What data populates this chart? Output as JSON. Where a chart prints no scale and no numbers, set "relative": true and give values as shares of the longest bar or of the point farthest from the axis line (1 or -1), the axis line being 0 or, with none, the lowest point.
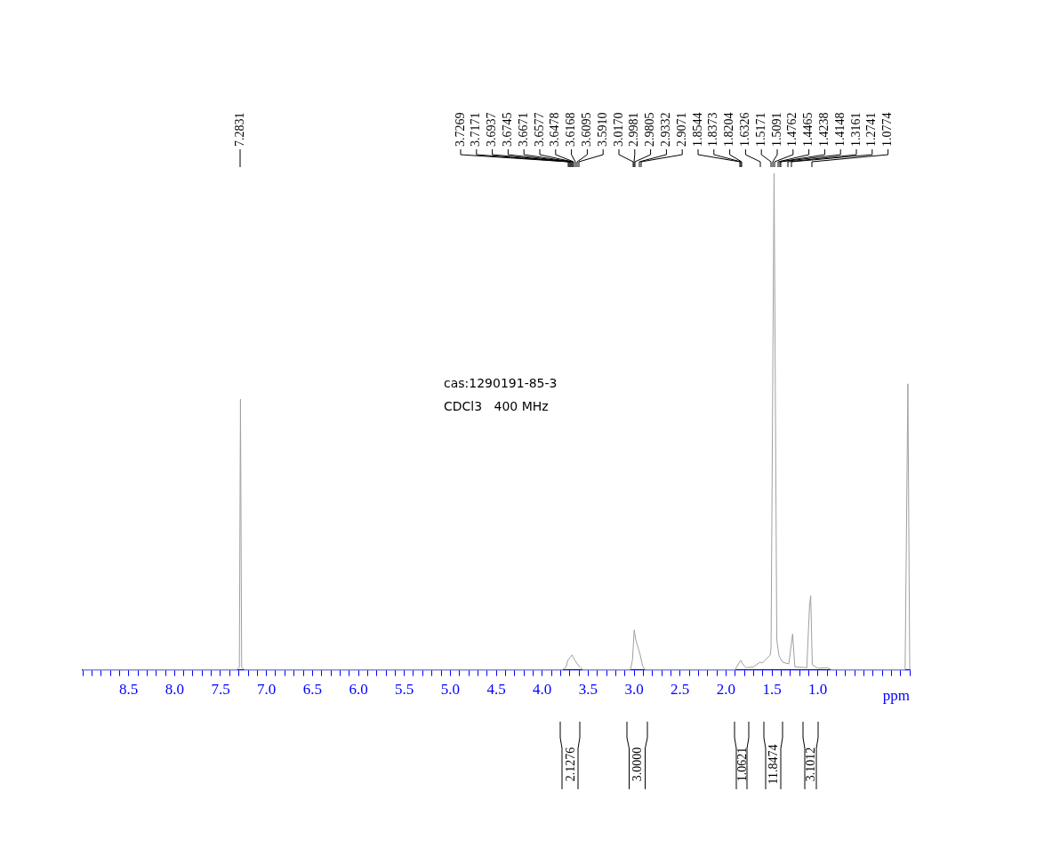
{
  "chart_data": {
    "type": "line",
    "relative": true,
    "xlabel": "ppm",
    "marker": "none",
    "xlim": [
      9.0,
      0.0
    ],
    "xticks": [
      {
        "value": 0,
        "label": null
      },
      {
        "value": 0.1,
        "label": null
      },
      {
        "value": 0.2,
        "label": null
      },
      {
        "value": 0.3,
        "label": null
      },
      {
        "value": 0.4,
        "label": null
      },
      {
        "value": 0.5,
        "label": null
      },
      {
        "value": 0.6,
        "label": null
      },
      {
        "value": 0.7,
        "label": null
      },
      {
        "value": 0.8,
        "label": null
      },
      {
        "value": 0.9,
        "label": null
      },
      {
        "value": 1,
        "label": "1.0"
      },
      {
        "value": 1.1,
        "label": null
      },
      {
        "value": 1.2,
        "label": null
      },
      {
        "value": 1.3,
        "label": null
      },
      {
        "value": 1.4,
        "label": null
      },
      1.5,
      {
        "value": 1.6,
        "label": null
      },
      {
        "value": 1.7,
        "label": null
      },
      {
        "value": 1.8,
        "label": null
      },
      {
        "value": 1.9,
        "label": null
      },
      {
        "value": 2,
        "label": "2.0"
      },
      {
        "value": 2.1,
        "label": null
      },
      {
        "value": 2.2,
        "label": null
      },
      {
        "value": 2.3,
        "label": null
      },
      {
        "value": 2.4,
        "label": null
      },
      2.5,
      {
        "value": 2.6,
        "label": null
      },
      {
        "value": 2.7,
        "label": null
      },
      {
        "value": 2.8,
        "label": null
      },
      {
        "value": 2.9,
        "label": null
      },
      {
        "value": 3,
        "label": "3.0"
      },
      {
        "value": 3.1,
        "label": null
      },
      {
        "value": 3.2,
        "label": null
      },
      {
        "value": 3.3,
        "label": null
      },
      {
        "value": 3.4,
        "label": null
      },
      3.5,
      {
        "value": 3.6,
        "label": null
      },
      {
        "value": 3.7,
        "label": null
      },
      {
        "value": 3.8,
        "label": null
      },
      {
        "value": 3.9,
        "label": null
      },
      {
        "value": 4,
        "label": "4.0"
      },
      {
        "value": 4.1,
        "label": null
      },
      {
        "value": 4.2,
        "label": null
      },
      {
        "value": 4.3,
        "label": null
      },
      {
        "value": 4.4,
        "label": null
      },
      4.5,
      {
        "value": 4.6,
        "label": null
      },
      {
        "value": 4.7,
        "label": null
      },
      {
        "value": 4.8,
        "label": null
      },
      {
        "value": 4.9,
        "label": null
      },
      {
        "value": 5,
        "label": "5.0"
      },
      {
        "value": 5.1,
        "label": null
      },
      {
        "value": 5.2,
        "label": null
      },
      {
        "value": 5.3,
        "label": null
      },
      {
        "value": 5.4,
        "label": null
      },
      5.5,
      {
        "value": 5.6,
        "label": null
      },
      {
        "value": 5.7,
        "label": null
      },
      {
        "value": 5.8,
        "label": null
      },
      {
        "value": 5.9,
        "label": null
      },
      {
        "value": 6,
        "label": "6.0"
      },
      {
        "value": 6.1,
        "label": null
      },
      {
        "value": 6.2,
        "label": null
      },
      {
        "value": 6.3,
        "label": null
      },
      {
        "value": 6.4,
        "label": null
      },
      6.5,
      {
        "value": 6.6,
        "label": null
      },
      {
        "value": 6.7,
        "label": null
      },
      {
        "value": 6.8,
        "label": null
      },
      {
        "value": 6.9,
        "label": null
      },
      {
        "value": 7,
        "label": "7.0"
      },
      {
        "value": 7.1,
        "label": null
      },
      {
        "value": 7.2,
        "label": null
      },
      {
        "value": 7.3,
        "label": null
      },
      {
        "value": 7.4,
        "label": null
      },
      7.5,
      {
        "value": 7.6,
        "label": null
      },
      {
        "value": 7.7,
        "label": null
      },
      {
        "value": 7.8,
        "label": null
      },
      {
        "value": 7.9,
        "label": null
      },
      {
        "value": 8,
        "label": "8.0"
      },
      {
        "value": 8.1,
        "label": null
      },
      {
        "value": 8.2,
        "label": null
      },
      {
        "value": 8.3,
        "label": null
      },
      {
        "value": 8.4,
        "label": null
      },
      8.5,
      {
        "value": 8.6,
        "label": null
      },
      {
        "value": 8.7,
        "label": null
      },
      {
        "value": 8.8,
        "label": null
      },
      {
        "value": 8.9,
        "label": null
      },
      {
        "value": 9,
        "label": null
      }
    ],
    "series": [
      {
        "color": "#a0a0a0",
        "x": [
          9.0,
          7.32,
          7.295,
          7.2831,
          7.27,
          7.24,
          3.78,
          3.74,
          3.7269,
          3.7171,
          3.6937,
          3.6745,
          3.6671,
          3.6577,
          3.6478,
          3.6168,
          3.6095,
          3.591,
          3.56,
          3.04,
          3.017,
          2.9981,
          2.9805,
          2.9332,
          2.9071,
          2.88,
          1.9,
          1.8544,
          1.8373,
          1.8204,
          1.78,
          1.7,
          1.6326,
          1.6,
          1.5171,
          1.5091,
          1.4762,
          1.4465,
          1.4238,
          1.4148,
          1.38,
          1.3161,
          1.2741,
          1.25,
          1.12,
          1.09,
          1.0774,
          1.06,
          1.0,
          0.9,
          0.85,
          0.05,
          0.02,
          0.0
        ],
        "values": [
          0,
          0,
          0.005,
          0.545,
          0.005,
          0,
          0,
          0.005,
          0.015,
          0.02,
          0.025,
          0.03,
          0.027,
          0.024,
          0.02,
          0.012,
          0.01,
          0.006,
          0,
          0,
          0.02,
          0.08,
          0.06,
          0.03,
          0.008,
          0,
          0,
          0.015,
          0.019,
          0.012,
          0.004,
          0.006,
          0.015,
          0.014,
          0.03,
          0.045,
          1,
          0.06,
          0.03,
          0.025,
          0.015,
          0.012,
          0.072,
          0.006,
          0.004,
          0.13,
          0.149,
          0.01,
          0.003,
          0.004,
          0,
          0,
          0.576,
          0
        ]
      }
    ],
    "annotations": [
      "cas:1290191-85-3",
      "CDCl3   400 MHz",
      "7.2831",
      "3.7269",
      "3.7171",
      "3.6937",
      "3.6745",
      "3.6671",
      "3.6577",
      "3.6478",
      "3.6168",
      "3.6095",
      "3.5910",
      "3.0170",
      "2.9981",
      "2.9805",
      "2.9332",
      "2.9071",
      "1.8544",
      "1.8373",
      "1.8204",
      "1.6326",
      "1.5171",
      "1.5091",
      "1.4762",
      "1.4465",
      "1.4238",
      "1.4148",
      "1.3161",
      "1.2741",
      "1.0774",
      "2.1276",
      "3.0000",
      "1.0621",
      "11.8474",
      "3.1012"
    ]
  }
}
